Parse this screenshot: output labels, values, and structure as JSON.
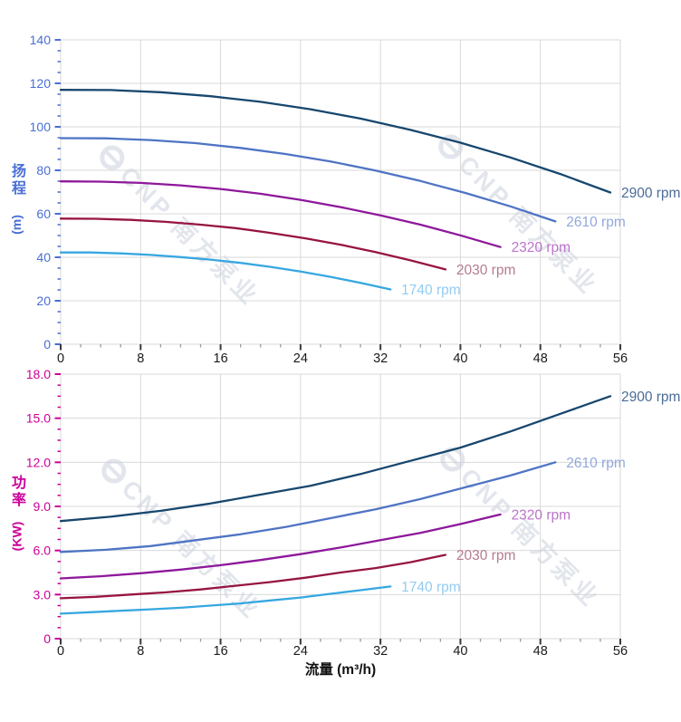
{
  "watermark": {
    "text": "CNP 南方泵业",
    "logo": "e-circle-logo",
    "color": "#ccd2dd"
  },
  "axis_titles": {
    "head_cjk": "扬程",
    "head_unit": "(m)",
    "power_cjk": "功率",
    "power_unit": "(KW)",
    "flow": "流量 (m³/h)"
  },
  "colors": {
    "grid": "#d9d9d9",
    "head_axis_accent": "#4a6fd4",
    "power_axis_accent": "#cc0099",
    "x_tick_label": "#1a1a1a"
  },
  "chart_data": [
    {
      "id": "head",
      "type": "line",
      "title": "",
      "ylabel": "扬程 (m)",
      "ylabel_cjk": "扬程",
      "ylabel_unit": "(m)",
      "xlabel": "",
      "x_min": 0,
      "x_max": 56,
      "x_major": 8,
      "x_minor": 2,
      "y_min": 0,
      "y_max": 140,
      "y_major": 20,
      "y_minor": 5,
      "x_labels": [
        "0",
        "8",
        "16",
        "24",
        "32",
        "40",
        "48",
        "56"
      ],
      "y_labels": [
        "0",
        "20",
        "40",
        "60",
        "80",
        "100",
        "120",
        "140"
      ],
      "grid": true,
      "legend_position": "curve-end-labels",
      "axis_color": "#4a6fd4",
      "series": [
        {
          "name": "2900 rpm",
          "color": "#17476e",
          "label_color": "#4b6c97",
          "points": [
            [
              0,
              117
            ],
            [
              5,
              116.9
            ],
            [
              10,
              115.9
            ],
            [
              15,
              114.1
            ],
            [
              20,
              111.5
            ],
            [
              25,
              108.1
            ],
            [
              30,
              103.8
            ],
            [
              35,
              98.6
            ],
            [
              40,
              92.7
            ],
            [
              45,
              85.9
            ],
            [
              50,
              78.3
            ],
            [
              55,
              69.8
            ]
          ]
        },
        {
          "name": "2610 rpm",
          "color": "#4f74c4",
          "label_color": "#92a8dc",
          "points": [
            [
              0,
              94.8
            ],
            [
              4.5,
              94.7
            ],
            [
              9,
              93.9
            ],
            [
              13.5,
              92.5
            ],
            [
              18,
              90.3
            ],
            [
              22.5,
              87.5
            ],
            [
              27,
              84.1
            ],
            [
              31.5,
              79.9
            ],
            [
              36,
              75.1
            ],
            [
              40.5,
              69.6
            ],
            [
              45,
              63.4
            ],
            [
              49.5,
              56.5
            ]
          ]
        },
        {
          "name": "2320 rpm",
          "color": "#8e189b",
          "label_color": "#bb74c8",
          "points": [
            [
              0,
              74.9
            ],
            [
              4,
              74.8
            ],
            [
              8,
              74.2
            ],
            [
              12,
              73.1
            ],
            [
              16,
              71.4
            ],
            [
              20,
              69.2
            ],
            [
              24,
              66.4
            ],
            [
              28,
              63.1
            ],
            [
              32,
              59.3
            ],
            [
              36,
              55
            ],
            [
              40,
              50.1
            ],
            [
              44,
              44.7
            ]
          ]
        },
        {
          "name": "2030 rpm",
          "color": "#97153f",
          "label_color": "#b47b90",
          "points": [
            [
              0,
              57.8
            ],
            [
              3.5,
              57.7
            ],
            [
              7,
              57.2
            ],
            [
              10.5,
              56.3
            ],
            [
              14,
              55
            ],
            [
              17.5,
              53.4
            ],
            [
              21,
              51.2
            ],
            [
              24.5,
              48.7
            ],
            [
              28,
              45.8
            ],
            [
              31.5,
              42.4
            ],
            [
              35,
              38.6
            ],
            [
              38.5,
              34.4
            ]
          ]
        },
        {
          "name": "1740 rpm",
          "color": "#36a7e0",
          "label_color": "#92ccf0",
          "points": [
            [
              0,
              42.2
            ],
            [
              3,
              42.2
            ],
            [
              6,
              41.8
            ],
            [
              9,
              41.1
            ],
            [
              12,
              40.1
            ],
            [
              15,
              38.9
            ],
            [
              18,
              37.4
            ],
            [
              21,
              35.6
            ],
            [
              24,
              33.4
            ],
            [
              27,
              31
            ],
            [
              30,
              28.2
            ],
            [
              33,
              25.2
            ]
          ]
        }
      ]
    },
    {
      "id": "power",
      "type": "line",
      "title": "",
      "ylabel": "功率 (KW)",
      "ylabel_cjk": "功率",
      "ylabel_unit": "(KW)",
      "xlabel": "流量 (m³/h)",
      "x_min": 0,
      "x_max": 56,
      "x_major": 8,
      "x_minor": 2,
      "y_min": 0,
      "y_max": 18,
      "y_major": 3,
      "y_minor": 0.75,
      "x_labels": [
        "0",
        "8",
        "16",
        "24",
        "32",
        "40",
        "48",
        "56"
      ],
      "y_labels": [
        "0",
        "3.0",
        "6.0",
        "9.0",
        "12.0",
        "15.0",
        "18.0"
      ],
      "grid": true,
      "legend_position": "curve-end-labels",
      "axis_color": "#cc0099",
      "series": [
        {
          "name": "2900 rpm",
          "color": "#17476e",
          "label_color": "#4b6c97",
          "points": [
            [
              0,
              8
            ],
            [
              5,
              8.3
            ],
            [
              10,
              8.7
            ],
            [
              15,
              9.2
            ],
            [
              20,
              9.8
            ],
            [
              25,
              10.4
            ],
            [
              30,
              11.2
            ],
            [
              35,
              12.1
            ],
            [
              40,
              13
            ],
            [
              45,
              14.1
            ],
            [
              50,
              15.3
            ],
            [
              55,
              16.5
            ]
          ]
        },
        {
          "name": "2610 rpm",
          "color": "#4f74c4",
          "label_color": "#92a8dc",
          "points": [
            [
              0,
              5.9
            ],
            [
              4.5,
              6.05
            ],
            [
              9,
              6.3
            ],
            [
              13.5,
              6.7
            ],
            [
              18,
              7.1
            ],
            [
              22.5,
              7.6
            ],
            [
              27,
              8.2
            ],
            [
              31.5,
              8.8
            ],
            [
              36,
              9.5
            ],
            [
              40.5,
              10.3
            ],
            [
              45,
              11.1
            ],
            [
              49.5,
              12
            ]
          ]
        },
        {
          "name": "2320 rpm",
          "color": "#8e189b",
          "label_color": "#bb74c8",
          "points": [
            [
              0,
              4.1
            ],
            [
              4,
              4.25
            ],
            [
              8,
              4.45
            ],
            [
              12,
              4.7
            ],
            [
              16,
              5
            ],
            [
              20,
              5.35
            ],
            [
              24,
              5.75
            ],
            [
              28,
              6.2
            ],
            [
              32,
              6.7
            ],
            [
              36,
              7.2
            ],
            [
              40,
              7.8
            ],
            [
              44,
              8.45
            ]
          ]
        },
        {
          "name": "2030 rpm",
          "color": "#97153f",
          "label_color": "#b47b90",
          "points": [
            [
              0,
              2.75
            ],
            [
              3.5,
              2.85
            ],
            [
              7,
              3
            ],
            [
              10.5,
              3.15
            ],
            [
              14,
              3.35
            ],
            [
              17.5,
              3.6
            ],
            [
              21,
              3.85
            ],
            [
              24.5,
              4.15
            ],
            [
              28,
              4.5
            ],
            [
              31.5,
              4.8
            ],
            [
              35,
              5.2
            ],
            [
              38.5,
              5.7
            ]
          ]
        },
        {
          "name": "1740 rpm",
          "color": "#36a7e0",
          "label_color": "#92ccf0",
          "points": [
            [
              0,
              1.7
            ],
            [
              3,
              1.8
            ],
            [
              6,
              1.9
            ],
            [
              9,
              2
            ],
            [
              12,
              2.1
            ],
            [
              15,
              2.25
            ],
            [
              18,
              2.4
            ],
            [
              21,
              2.6
            ],
            [
              24,
              2.8
            ],
            [
              27,
              3.05
            ],
            [
              30,
              3.3
            ],
            [
              33,
              3.55
            ]
          ]
        }
      ]
    }
  ]
}
